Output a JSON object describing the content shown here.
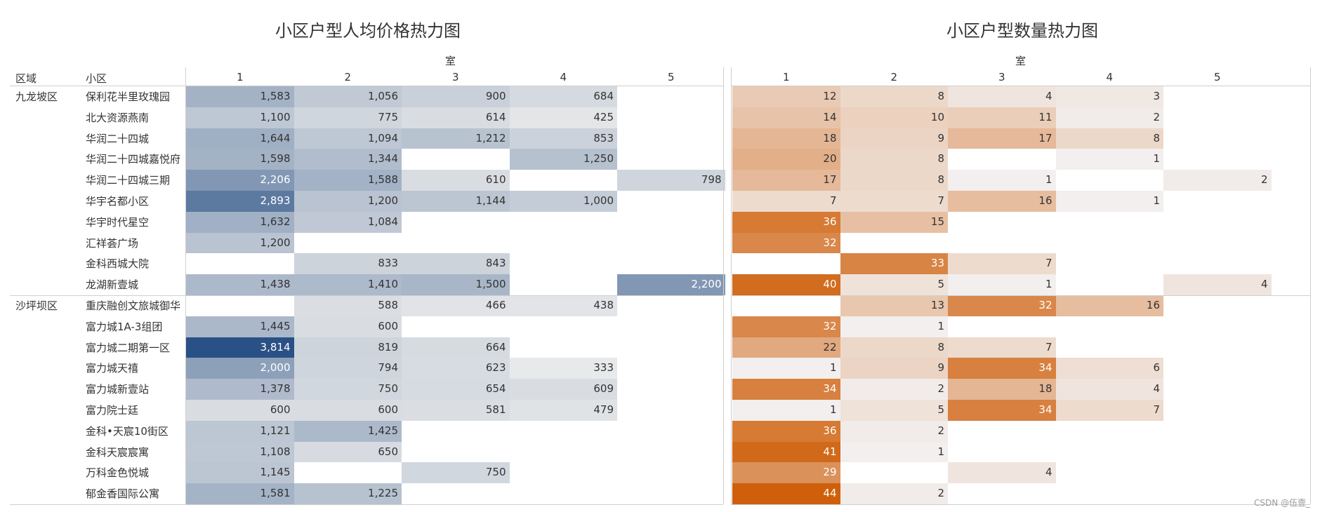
{
  "titles": {
    "left": "小区户型人均价格热力图",
    "right": "小区户型数量热力图"
  },
  "headers": {
    "room_group": "室",
    "district_col": "区域",
    "community_col": "小区",
    "room_columns": [
      "1",
      "2",
      "3",
      "4",
      "5"
    ]
  },
  "watermark": "CSDN @伍壹_",
  "colors": {
    "price_low": "#e8e9ea",
    "price_high": "#2a5185",
    "count_low": "#f2efee",
    "count_high": "#cf5f0a"
  },
  "chart_data": [
    {
      "type": "heatmap",
      "title": "小区户型人均价格热力图",
      "x_title": "室",
      "x": [
        "1",
        "2",
        "3",
        "4",
        "5"
      ],
      "row_headers": [
        "区域",
        "小区"
      ],
      "rows": [
        {
          "district": "九龙坡区",
          "community": "保利花半里玫瑰园"
        },
        {
          "district": "",
          "community": "北大资源燕南"
        },
        {
          "district": "",
          "community": "华润二十四城"
        },
        {
          "district": "",
          "community": "华润二十四城嘉悦府"
        },
        {
          "district": "",
          "community": "华润二十四城三期"
        },
        {
          "district": "",
          "community": "华宇名都小区"
        },
        {
          "district": "",
          "community": "华宇时代星空"
        },
        {
          "district": "",
          "community": "汇祥荟广场"
        },
        {
          "district": "",
          "community": "金科西城大院"
        },
        {
          "district": "",
          "community": "龙湖新壹城"
        },
        {
          "district": "沙坪坝区",
          "community": "重庆融创文旅城御华"
        },
        {
          "district": "",
          "community": "富力城1A-3组团"
        },
        {
          "district": "",
          "community": "富力城二期第一区"
        },
        {
          "district": "",
          "community": "富力城天禧"
        },
        {
          "district": "",
          "community": "富力城新壹站"
        },
        {
          "district": "",
          "community": "富力院士廷"
        },
        {
          "district": "",
          "community": "金科•天宸10街区"
        },
        {
          "district": "",
          "community": "金科天宸宸寓"
        },
        {
          "district": "",
          "community": "万科金色悦城"
        },
        {
          "district": "",
          "community": "郁金香国际公寓"
        }
      ],
      "values": [
        [
          1583,
          1056,
          900,
          684,
          null
        ],
        [
          1100,
          775,
          614,
          425,
          null
        ],
        [
          1644,
          1094,
          1212,
          853,
          null
        ],
        [
          1598,
          1344,
          null,
          1250,
          null
        ],
        [
          2206,
          1588,
          610,
          null,
          798
        ],
        [
          2893,
          1200,
          1144,
          1000,
          null
        ],
        [
          1632,
          1084,
          null,
          null,
          null
        ],
        [
          1200,
          null,
          null,
          null,
          null
        ],
        [
          null,
          833,
          843,
          null,
          null
        ],
        [
          1438,
          1410,
          1500,
          null,
          2200
        ],
        [
          null,
          588,
          466,
          438,
          null
        ],
        [
          1445,
          600,
          null,
          null,
          null
        ],
        [
          3814,
          819,
          664,
          null,
          null
        ],
        [
          2000,
          794,
          623,
          333,
          null
        ],
        [
          1378,
          750,
          654,
          609,
          null
        ],
        [
          600,
          600,
          581,
          479,
          null
        ],
        [
          1121,
          1425,
          null,
          null,
          null
        ],
        [
          1108,
          650,
          null,
          null,
          null
        ],
        [
          1145,
          null,
          750,
          null,
          null
        ],
        [
          1581,
          1225,
          null,
          null,
          null
        ]
      ],
      "color_range": [
        333,
        3814
      ]
    },
    {
      "type": "heatmap",
      "title": "小区户型数量热力图",
      "x_title": "室",
      "x": [
        "1",
        "2",
        "3",
        "4",
        "5"
      ],
      "values": [
        [
          12,
          8,
          4,
          3,
          null
        ],
        [
          14,
          10,
          11,
          2,
          null
        ],
        [
          18,
          9,
          17,
          8,
          null
        ],
        [
          20,
          8,
          null,
          1,
          null
        ],
        [
          17,
          8,
          1,
          null,
          2
        ],
        [
          7,
          7,
          16,
          1,
          null
        ],
        [
          36,
          15,
          null,
          null,
          null
        ],
        [
          32,
          null,
          null,
          null,
          null
        ],
        [
          null,
          33,
          7,
          null,
          null
        ],
        [
          40,
          5,
          1,
          null,
          4
        ],
        [
          null,
          13,
          32,
          16,
          null
        ],
        [
          32,
          1,
          null,
          null,
          null
        ],
        [
          22,
          8,
          7,
          null,
          null
        ],
        [
          1,
          9,
          34,
          6,
          null
        ],
        [
          34,
          2,
          18,
          4,
          null
        ],
        [
          1,
          5,
          34,
          7,
          null
        ],
        [
          36,
          2,
          null,
          null,
          null
        ],
        [
          41,
          1,
          null,
          null,
          null
        ],
        [
          29,
          null,
          4,
          null,
          null
        ],
        [
          44,
          2,
          null,
          null,
          null
        ]
      ],
      "color_range": [
        1,
        44
      ]
    }
  ]
}
